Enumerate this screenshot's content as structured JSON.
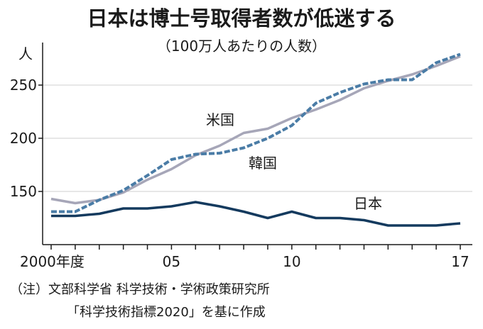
{
  "chart_data": {
    "type": "line",
    "title": "日本は博士号取得者数が低迷する",
    "subtitle": "（100万人あたりの人数）",
    "ylabel": "人",
    "ylim": [
      100,
      290
    ],
    "y_ticks": [
      "150",
      "200",
      "250"
    ],
    "x": [
      2000,
      2001,
      2002,
      2003,
      2004,
      2005,
      2006,
      2007,
      2008,
      2009,
      2010,
      2011,
      2012,
      2013,
      2014,
      2015,
      2016,
      2017
    ],
    "x_tick_labels": [
      "2000年度",
      "05",
      "10",
      "17"
    ],
    "series": [
      {
        "name": "米国",
        "color": "#a6a6b8",
        "style": "solid",
        "values": [
          143,
          139,
          142,
          149,
          161,
          171,
          184,
          193,
          205,
          209,
          219,
          227,
          236,
          247,
          254,
          260,
          268,
          277
        ]
      },
      {
        "name": "韓国",
        "color": "#4a7ca6",
        "style": "dashed",
        "values": [
          131,
          131,
          142,
          151,
          165,
          180,
          185,
          186,
          191,
          200,
          212,
          233,
          243,
          251,
          255,
          255,
          271,
          279
        ]
      },
      {
        "name": "日本",
        "color": "#143a5e",
        "style": "solid",
        "values": [
          127,
          127,
          129,
          134,
          134,
          136,
          140,
          136,
          131,
          125,
          131,
          125,
          125,
          123,
          118,
          118,
          118,
          120
        ]
      }
    ]
  },
  "note": {
    "line1": "（注）文部科学省 科学技術・学術政策研究所",
    "line2": "「科学技術指標2020」を基に作成"
  }
}
